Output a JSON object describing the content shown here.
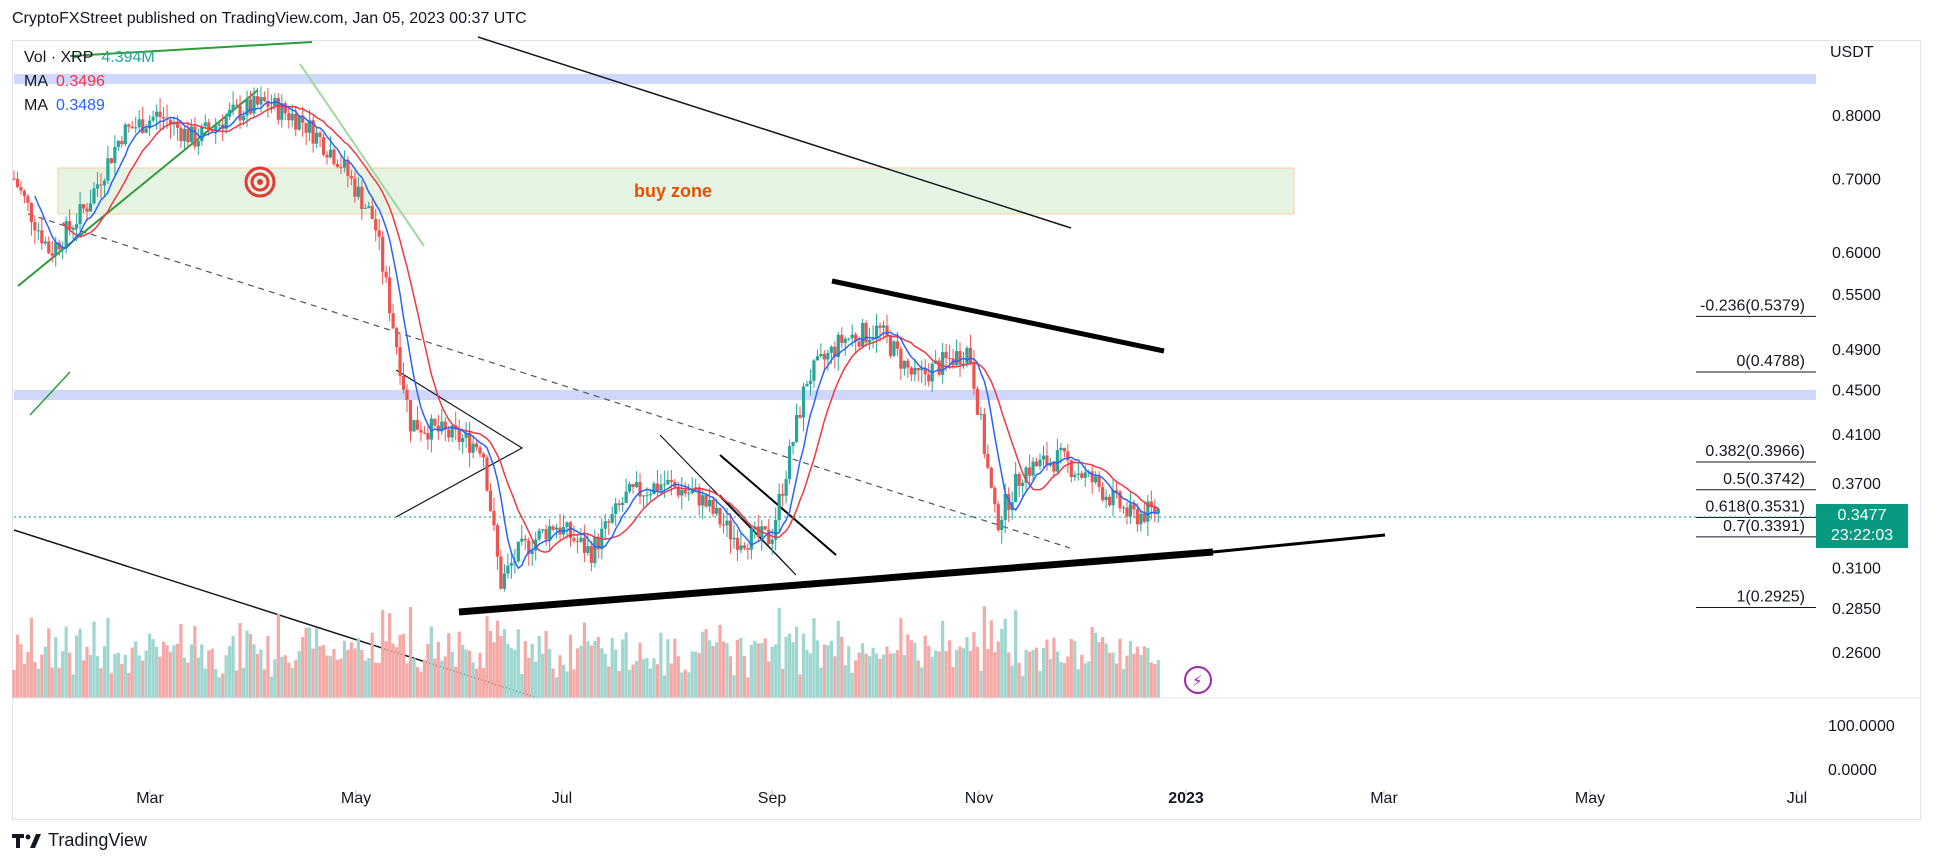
{
  "header": {
    "text": "CryptoFXStreet published on TradingView.com, Jan 05, 2023 00:37 UTC"
  },
  "legend": {
    "vol_label": "Vol · XRP",
    "vol_value": "4.394M",
    "ma1_label": "MA",
    "ma1_value": "0.3496",
    "ma2_label": "MA",
    "ma2_value": "0.3489"
  },
  "axis": {
    "currency": "USDT"
  },
  "price_tag": {
    "price": "0.3477",
    "countdown": "23:22:03"
  },
  "annotations": {
    "buy_zone": "buy zone"
  },
  "footer": {
    "brand": "TradingView"
  },
  "colors": {
    "up": "#26a69a",
    "down": "#ef5350",
    "ma_fast": "#2962ff",
    "ma_slow": "#f23645",
    "buy_zone": "#e6f4e4",
    "band": "#cfd8fb",
    "tag": "#089981"
  },
  "chart_data": {
    "type": "candlestick",
    "ylabel": "USDT",
    "y_scale": "log",
    "ylim": [
      0.24,
      0.92
    ],
    "x_ticks": [
      "Mar",
      "May",
      "Jul",
      "Sep",
      "Nov",
      "2023",
      "Mar",
      "May",
      "Jul"
    ],
    "y_ticks": [
      0.8,
      0.7,
      0.6,
      0.55,
      0.49,
      0.45,
      0.41,
      0.37,
      0.31,
      0.285,
      0.26
    ],
    "y_tick_labels": [
      "0.8000",
      "0.7000",
      "0.6000",
      "0.5500",
      "0.4900",
      "0.4500",
      "0.4100",
      "0.3700",
      "0.3100",
      "0.2850",
      "0.2600"
    ],
    "volume_axis_labels": [
      "100.0000",
      "0.0000"
    ],
    "fib_levels": [
      {
        "label": "-0.236(0.5379)",
        "value": 0.5379
      },
      {
        "label": "0(0.4788)",
        "value": 0.4788
      },
      {
        "label": "0.382(0.3966)",
        "value": 0.3966
      },
      {
        "label": "0.5(0.3742)",
        "value": 0.3742
      },
      {
        "label": "0.618(0.3531)",
        "value": 0.3531
      },
      {
        "label": "0.7(0.3391)",
        "value": 0.3391
      },
      {
        "label": "1(0.2925)",
        "value": 0.2925
      }
    ],
    "price_path": [
      {
        "t": 0.0,
        "p": 0.7
      },
      {
        "t": 0.02,
        "p": 0.6
      },
      {
        "t": 0.04,
        "p": 0.66
      },
      {
        "t": 0.06,
        "p": 0.77
      },
      {
        "t": 0.08,
        "p": 0.8
      },
      {
        "t": 0.1,
        "p": 0.76
      },
      {
        "t": 0.12,
        "p": 0.8
      },
      {
        "t": 0.14,
        "p": 0.82
      },
      {
        "t": 0.16,
        "p": 0.79
      },
      {
        "t": 0.18,
        "p": 0.73
      },
      {
        "t": 0.2,
        "p": 0.64
      },
      {
        "t": 0.21,
        "p": 0.52
      },
      {
        "t": 0.22,
        "p": 0.42
      },
      {
        "t": 0.24,
        "p": 0.41
      },
      {
        "t": 0.26,
        "p": 0.4
      },
      {
        "t": 0.27,
        "p": 0.3
      },
      {
        "t": 0.28,
        "p": 0.32
      },
      {
        "t": 0.3,
        "p": 0.34
      },
      {
        "t": 0.32,
        "p": 0.32
      },
      {
        "t": 0.34,
        "p": 0.36
      },
      {
        "t": 0.36,
        "p": 0.37
      },
      {
        "t": 0.38,
        "p": 0.36
      },
      {
        "t": 0.4,
        "p": 0.33
      },
      {
        "t": 0.42,
        "p": 0.33
      },
      {
        "t": 0.44,
        "p": 0.46
      },
      {
        "t": 0.46,
        "p": 0.5
      },
      {
        "t": 0.48,
        "p": 0.51
      },
      {
        "t": 0.5,
        "p": 0.46
      },
      {
        "t": 0.52,
        "p": 0.48
      },
      {
        "t": 0.53,
        "p": 0.49
      },
      {
        "t": 0.545,
        "p": 0.34
      },
      {
        "t": 0.56,
        "p": 0.38
      },
      {
        "t": 0.58,
        "p": 0.39
      },
      {
        "t": 0.6,
        "p": 0.37
      },
      {
        "t": 0.62,
        "p": 0.345
      },
      {
        "t": 0.635,
        "p": 0.35
      }
    ]
  }
}
